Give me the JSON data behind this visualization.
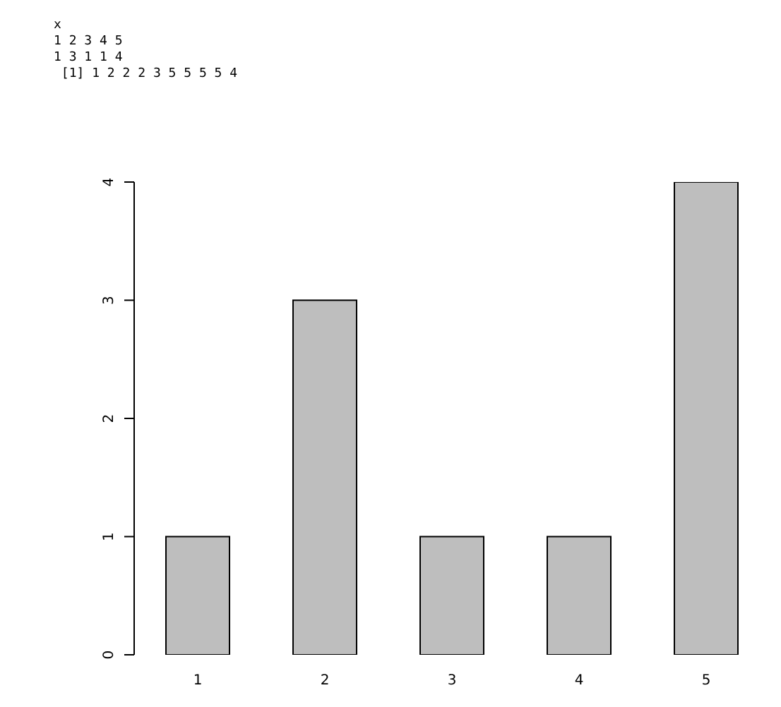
{
  "chart_data": {
    "type": "bar",
    "categories": [
      "1",
      "2",
      "3",
      "4",
      "5"
    ],
    "values": [
      1,
      3,
      1,
      1,
      4
    ],
    "color": "#bebebe",
    "ylim": [
      0,
      4
    ],
    "yticks": [
      0,
      1,
      2,
      3,
      4
    ],
    "grid": false,
    "legend": false,
    "annotations": [
      "x",
      "1 2 3 4 5",
      "1 3 1 1 4",
      " [1] 1 2 2 2 3 5 5 5 5 4"
    ]
  }
}
